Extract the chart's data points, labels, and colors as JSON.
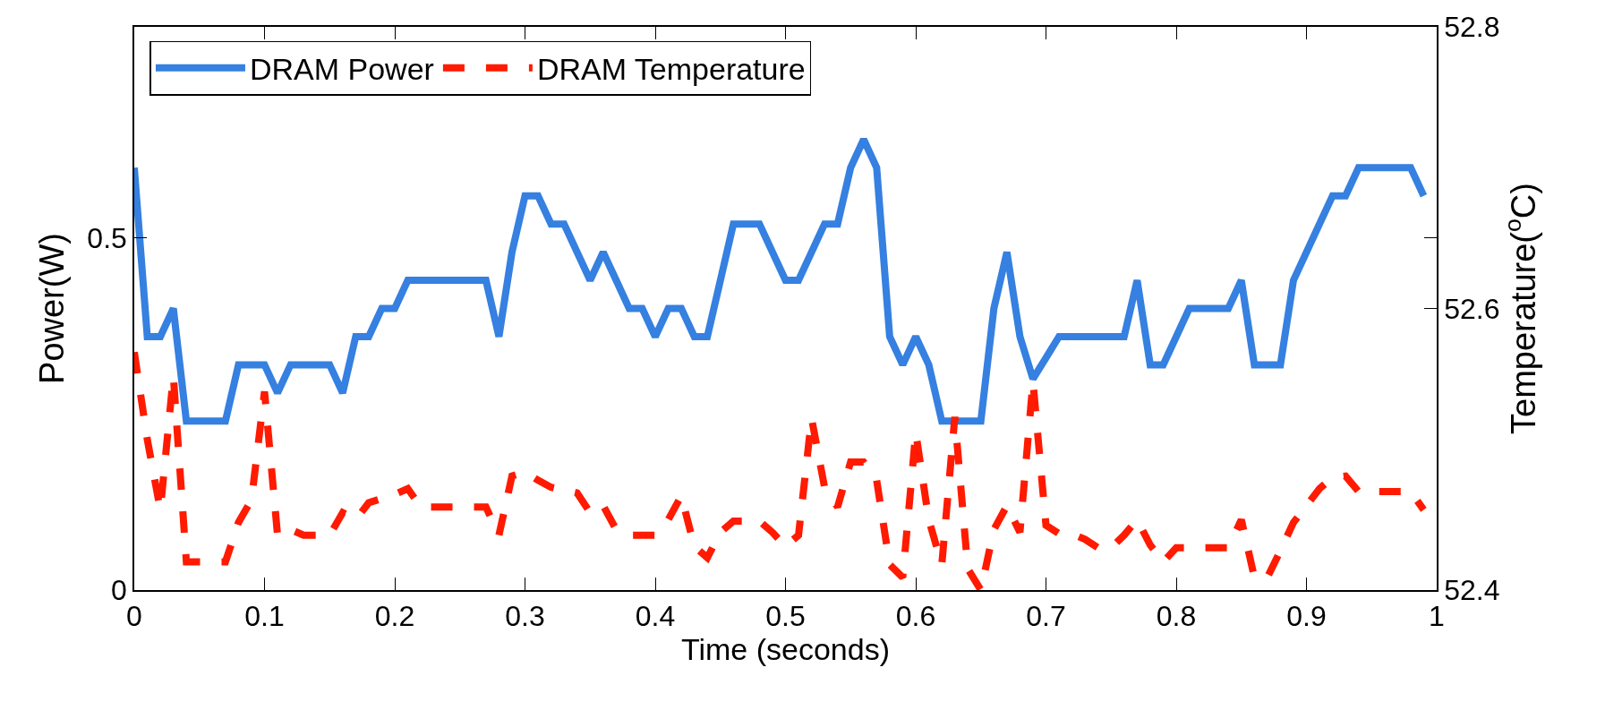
{
  "chart_data": {
    "type": "line",
    "xlabel": "Time (seconds)",
    "ylabel": "Power(W)",
    "y2label": "Temperature($^{o}$C)",
    "x": [
      0,
      0.01,
      0.02,
      0.03,
      0.04,
      0.05,
      0.06,
      0.07,
      0.08,
      0.09,
      0.1,
      0.11,
      0.12,
      0.13,
      0.14,
      0.15,
      0.16,
      0.17,
      0.18,
      0.19,
      0.2,
      0.21,
      0.22,
      0.23,
      0.24,
      0.25,
      0.26,
      0.27,
      0.28,
      0.29,
      0.3,
      0.31,
      0.32,
      0.33,
      0.34,
      0.35,
      0.36,
      0.37,
      0.38,
      0.39,
      0.4,
      0.41,
      0.42,
      0.43,
      0.44,
      0.45,
      0.46,
      0.47,
      0.48,
      0.49,
      0.5,
      0.51,
      0.52,
      0.53,
      0.54,
      0.55,
      0.56,
      0.57,
      0.58,
      0.59,
      0.6,
      0.61,
      0.62,
      0.63,
      0.64,
      0.65,
      0.66,
      0.67,
      0.68,
      0.69,
      0.7,
      0.71,
      0.72,
      0.73,
      0.74,
      0.75,
      0.76,
      0.77,
      0.78,
      0.79,
      0.8,
      0.81,
      0.82,
      0.83,
      0.84,
      0.85,
      0.86,
      0.87,
      0.88,
      0.89,
      0.9,
      0.91,
      0.92,
      0.93,
      0.94,
      0.95,
      0.96,
      0.97,
      0.98,
      0.99
    ],
    "series": [
      {
        "name": "DRAM Power",
        "color": "#3580e0",
        "line_style": "solid",
        "values": [
          0.6,
          0.36,
          0.36,
          0.4,
          0.24,
          0.24,
          0.24,
          0.24,
          0.32,
          0.32,
          0.32,
          0.28,
          0.32,
          0.32,
          0.32,
          0.32,
          0.28,
          0.36,
          0.36,
          0.4,
          0.4,
          0.44,
          0.44,
          0.44,
          0.44,
          0.44,
          0.44,
          0.44,
          0.36,
          0.48,
          0.56,
          0.56,
          0.52,
          0.52,
          0.48,
          0.44,
          0.48,
          0.44,
          0.4,
          0.4,
          0.36,
          0.4,
          0.4,
          0.36,
          0.36,
          0.44,
          0.52,
          0.52,
          0.52,
          0.48,
          0.44,
          0.44,
          0.48,
          0.52,
          0.52,
          0.6,
          0.64,
          0.6,
          0.36,
          0.32,
          0.36,
          0.32,
          0.24,
          0.24,
          0.24,
          0.24,
          0.4,
          0.48,
          0.36,
          0.3,
          0.33,
          0.36,
          0.36,
          0.36,
          0.36,
          0.36,
          0.36,
          0.44,
          0.32,
          0.32,
          0.36,
          0.4,
          0.4,
          0.4,
          0.4,
          0.44,
          0.32,
          0.32,
          0.32,
          0.44,
          0.48,
          0.52,
          0.56,
          0.56,
          0.6,
          0.6,
          0.6,
          0.6,
          0.6,
          0.56
        ]
      },
      {
        "name": "DRAM Temperature",
        "color": "#ff1a00",
        "line_style": "dashed",
        "axis": "y2",
        "values": [
          52.569,
          52.507,
          52.457,
          52.552,
          52.42,
          52.42,
          52.42,
          52.42,
          52.448,
          52.464,
          52.541,
          52.439,
          52.443,
          52.439,
          52.439,
          52.439,
          52.455,
          52.45,
          52.462,
          52.465,
          52.468,
          52.472,
          52.459,
          52.459,
          52.459,
          52.459,
          52.459,
          52.459,
          52.439,
          52.481,
          52.484,
          52.478,
          52.473,
          52.471,
          52.469,
          52.455,
          52.46,
          52.443,
          52.439,
          52.439,
          52.439,
          52.45,
          52.467,
          52.431,
          52.423,
          52.441,
          52.449,
          52.449,
          52.449,
          52.441,
          52.431,
          52.439,
          52.522,
          52.473,
          52.459,
          52.491,
          52.491,
          52.478,
          52.418,
          52.409,
          52.512,
          52.45,
          52.418,
          52.523,
          52.415,
          52.4,
          52.443,
          52.46,
          52.441,
          52.548,
          52.446,
          52.44,
          52.44,
          52.436,
          52.43,
          52.43,
          52.439,
          52.45,
          52.432,
          52.42,
          52.43,
          52.43,
          52.43,
          52.43,
          52.43,
          52.45,
          52.409,
          52.409,
          52.428,
          52.448,
          52.46,
          52.472,
          52.48,
          52.481,
          52.47,
          52.47,
          52.47,
          52.47,
          52.47,
          52.457
        ]
      }
    ],
    "xlim": [
      0,
      1
    ],
    "xticks": [
      0,
      0.1,
      0.2,
      0.3,
      0.4,
      0.5,
      0.6,
      0.7,
      0.8,
      0.9,
      1
    ],
    "ylim": [
      0,
      0.8
    ],
    "yticks": [
      0,
      0.5
    ],
    "y2lim": [
      52.4,
      52.8
    ],
    "y2ticks": [
      52.4,
      52.6,
      52.8
    ],
    "legend": "top left",
    "marker": "none"
  }
}
